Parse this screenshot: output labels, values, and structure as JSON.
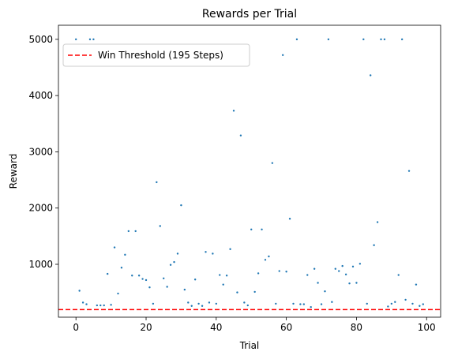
{
  "chart_data": {
    "type": "scatter",
    "title": "Rewards per Trial",
    "xlabel": "Trial",
    "ylabel": "Reward",
    "xlim": [
      -5,
      104
    ],
    "ylim": [
      60,
      5250
    ],
    "xticks": [
      0,
      20,
      40,
      60,
      80,
      100
    ],
    "yticks": [
      1000,
      2000,
      3000,
      4000,
      5000
    ],
    "grid": false,
    "legend_placement": "upper-left",
    "point_color": "#1f77b4",
    "threshold": {
      "value": 195,
      "label": "Win Threshold (195 Steps)",
      "color": "#ff0000",
      "style": "dashed"
    },
    "series": [
      {
        "x": [
          0,
          1,
          2,
          3,
          4,
          5,
          6,
          7,
          8,
          9,
          10,
          11,
          12,
          13,
          14,
          15,
          16,
          17,
          18,
          19,
          20,
          21,
          22,
          23,
          24,
          25,
          26,
          27,
          28,
          29,
          30,
          31,
          32,
          33,
          34,
          35,
          36,
          37,
          38,
          39,
          40,
          41,
          42,
          43,
          44,
          45,
          46,
          47,
          48,
          49,
          50,
          51,
          52,
          53,
          54,
          55,
          56,
          57,
          58,
          59,
          60,
          61,
          62,
          63,
          64,
          65,
          66,
          67,
          68,
          69,
          70,
          71,
          72,
          73,
          74,
          75,
          76,
          77,
          78,
          79,
          80,
          81,
          82,
          83,
          84,
          85,
          86,
          87,
          88,
          89,
          90,
          91,
          92,
          93,
          94,
          95,
          96,
          97,
          98,
          99
        ],
        "y": [
          5000,
          530,
          320,
          290,
          5000,
          5000,
          270,
          270,
          270,
          830,
          280,
          1300,
          480,
          940,
          1170,
          1590,
          800,
          1590,
          800,
          740,
          720,
          590,
          300,
          2460,
          1680,
          750,
          600,
          990,
          1040,
          1190,
          2050,
          550,
          320,
          260,
          730,
          300,
          260,
          1220,
          320,
          1190,
          300,
          810,
          640,
          800,
          1270,
          3730,
          500,
          3290,
          320,
          270,
          1620,
          510,
          840,
          1620,
          1080,
          1140,
          2800,
          300,
          880,
          4720,
          870,
          1810,
          300,
          5000,
          290,
          290,
          810,
          240,
          920,
          670,
          290,
          520,
          5000,
          330,
          920,
          880,
          970,
          820,
          660,
          960,
          670,
          1010,
          5000,
          300,
          4360,
          1340,
          1750,
          5000,
          5000,
          250,
          300,
          330,
          810,
          5000,
          370,
          2660,
          300,
          640,
          260,
          290
        ]
      }
    ]
  }
}
